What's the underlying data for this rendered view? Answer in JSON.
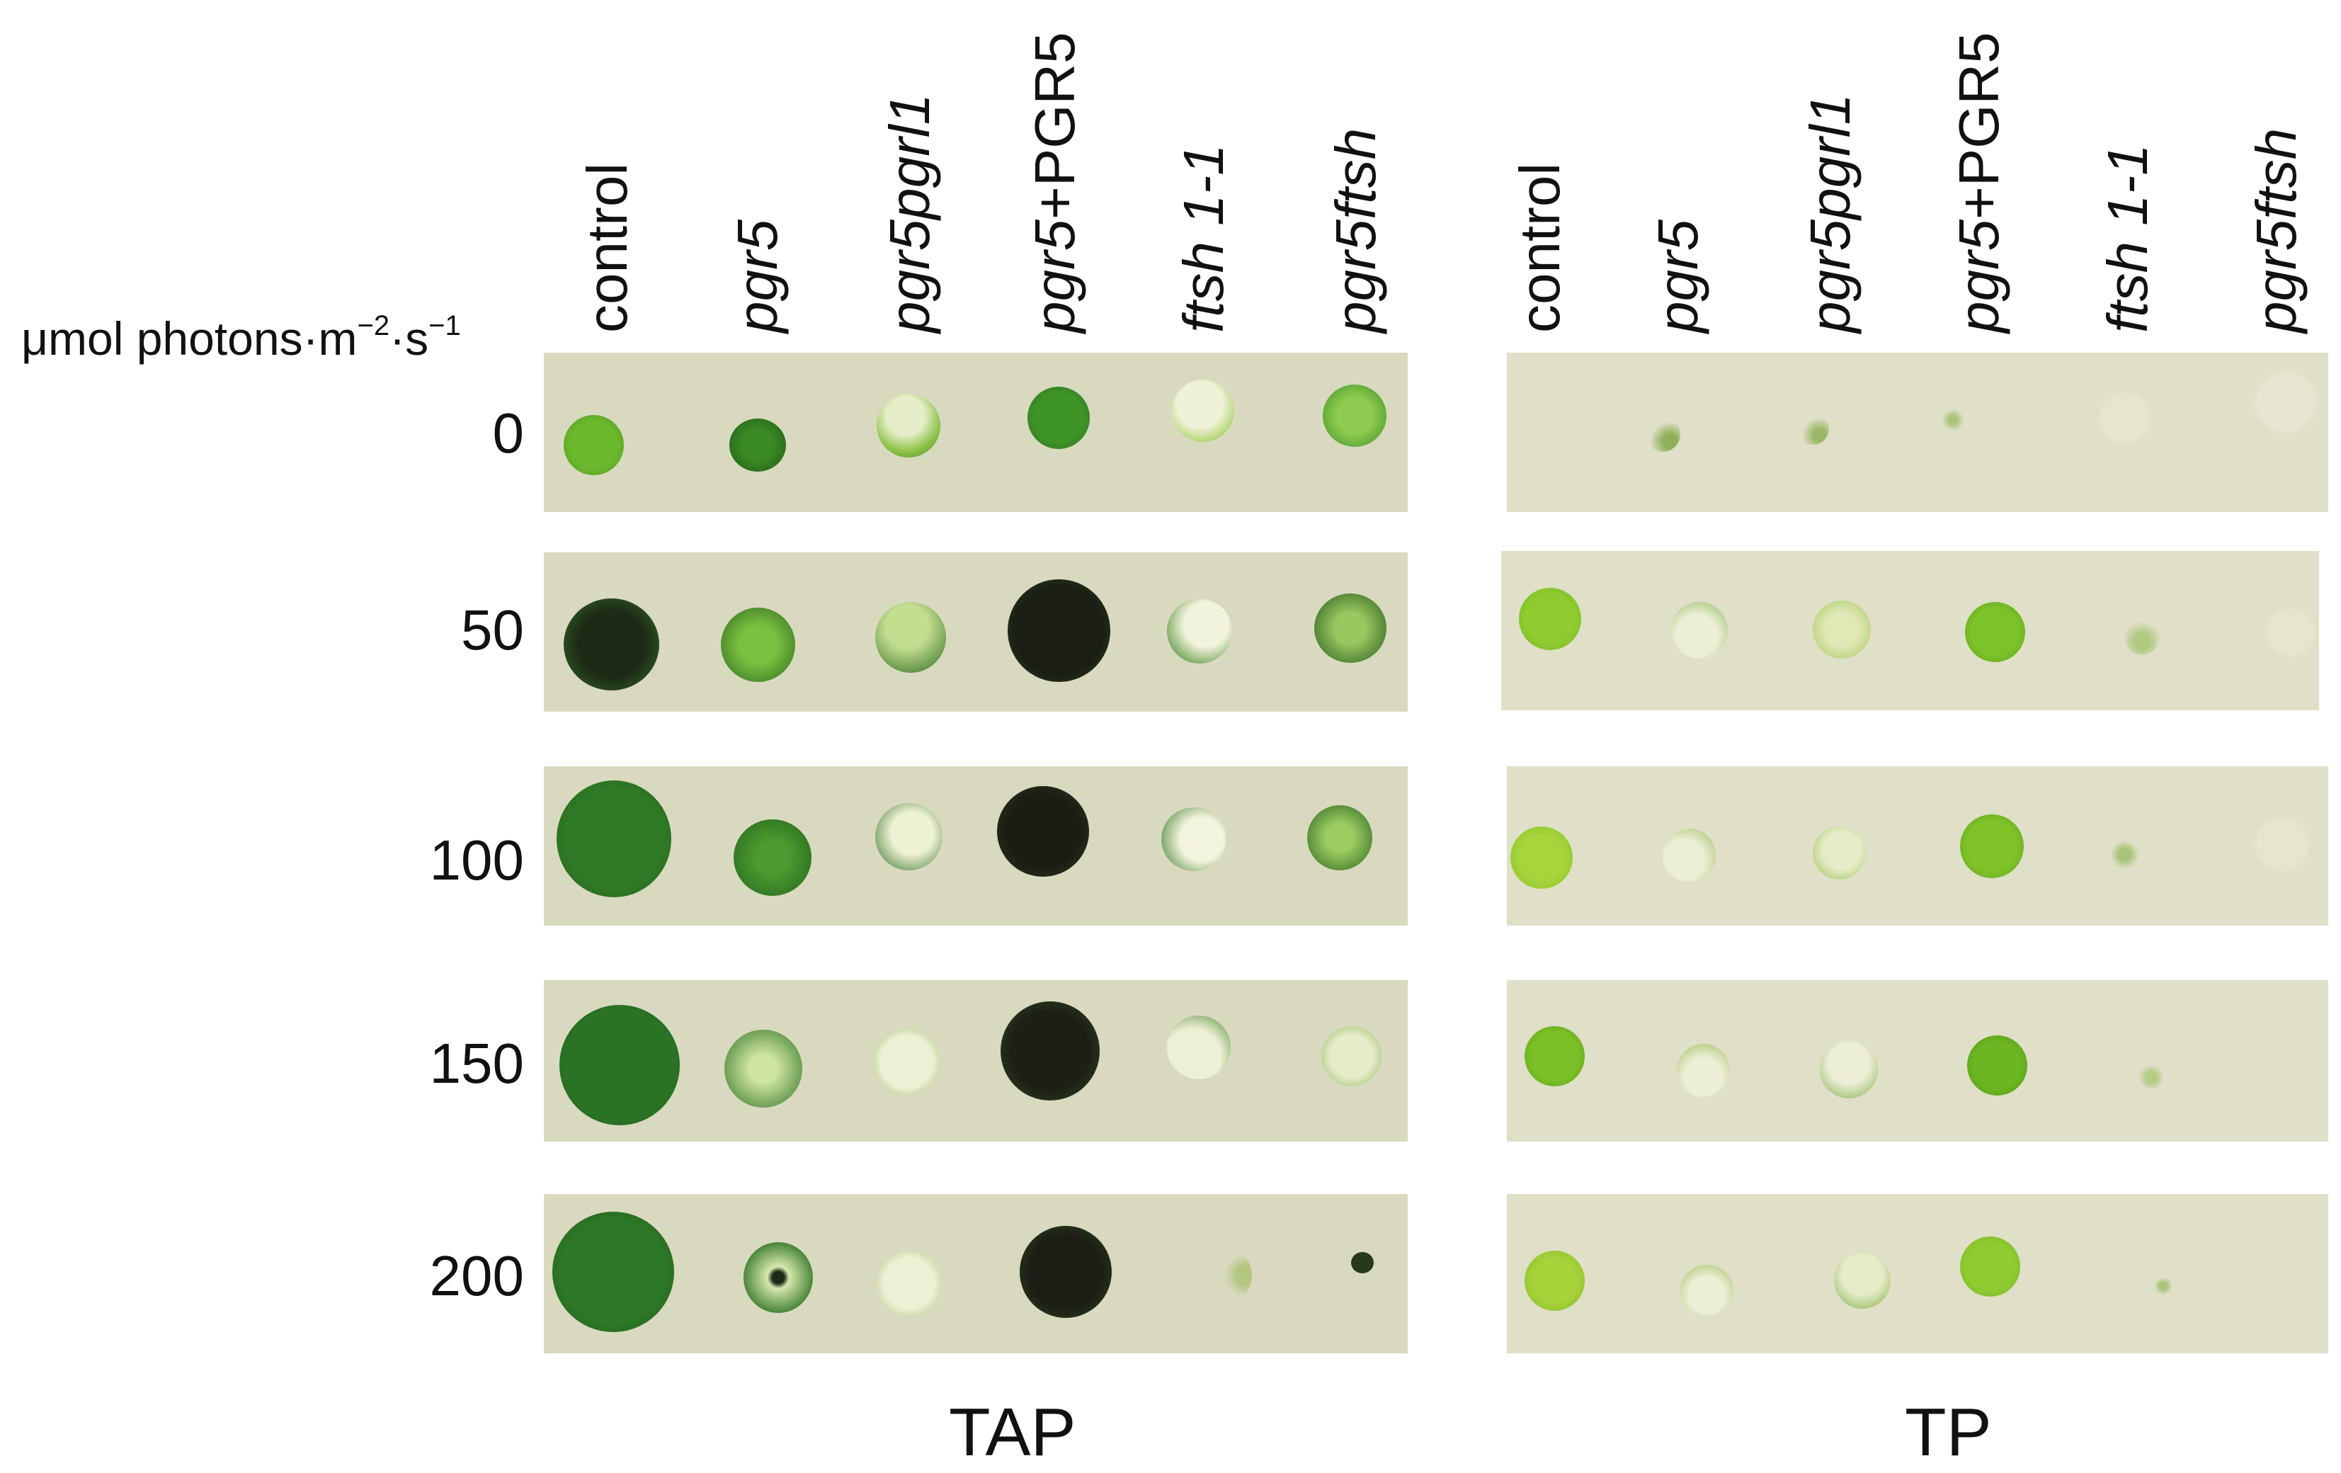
{
  "units_label": {
    "prefix": "μmol photons·m",
    "exp1": "−2",
    "mid": "·s",
    "exp2": "−1"
  },
  "strains": [
    {
      "id": "control",
      "label": "control"
    },
    {
      "id": "pgr5",
      "label": "pgr5"
    },
    {
      "id": "pgr5pgrl1",
      "label": "pgr5pgrl1"
    },
    {
      "id": "pgr5-plus-PGR5",
      "label": "pgr5+PGR5",
      "italic_part": "pgr5",
      "plain_part": "+PGR5"
    },
    {
      "id": "ftsh1-1",
      "label": "ftsh 1-1"
    },
    {
      "id": "pgr5ftsh",
      "label": "pgr5ftsh"
    }
  ],
  "light_levels": [
    "0",
    "50",
    "100",
    "150",
    "200"
  ],
  "panels": [
    {
      "id": "tap",
      "label": "TAP"
    },
    {
      "id": "tp",
      "label": "TP"
    }
  ],
  "colors": {
    "plate_tap": "#d9d9c0",
    "plate_tp": "#e0dfc8",
    "dark_green": "#1f4a1f",
    "mid_green": "#3a8a30",
    "light_green": "#8cc43c",
    "pale": "#e8ecc8"
  }
}
